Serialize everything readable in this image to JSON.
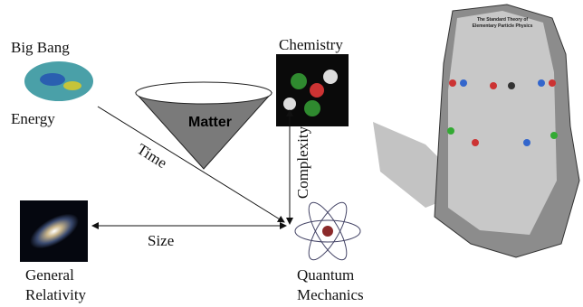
{
  "labels": {
    "big_bang": "Big Bang",
    "energy": "Energy",
    "chemistry": "Chemistry",
    "complexity": "Complexity",
    "matter": "Matter",
    "time": "Time",
    "size": "Size",
    "general_relativity": [
      "General",
      "Relativity"
    ],
    "quantum_mechanics": [
      "Quantum",
      "Mechanics"
    ]
  },
  "stone": {
    "title": [
      "The Standard Theory of",
      "Elementary Particle Physics"
    ]
  }
}
